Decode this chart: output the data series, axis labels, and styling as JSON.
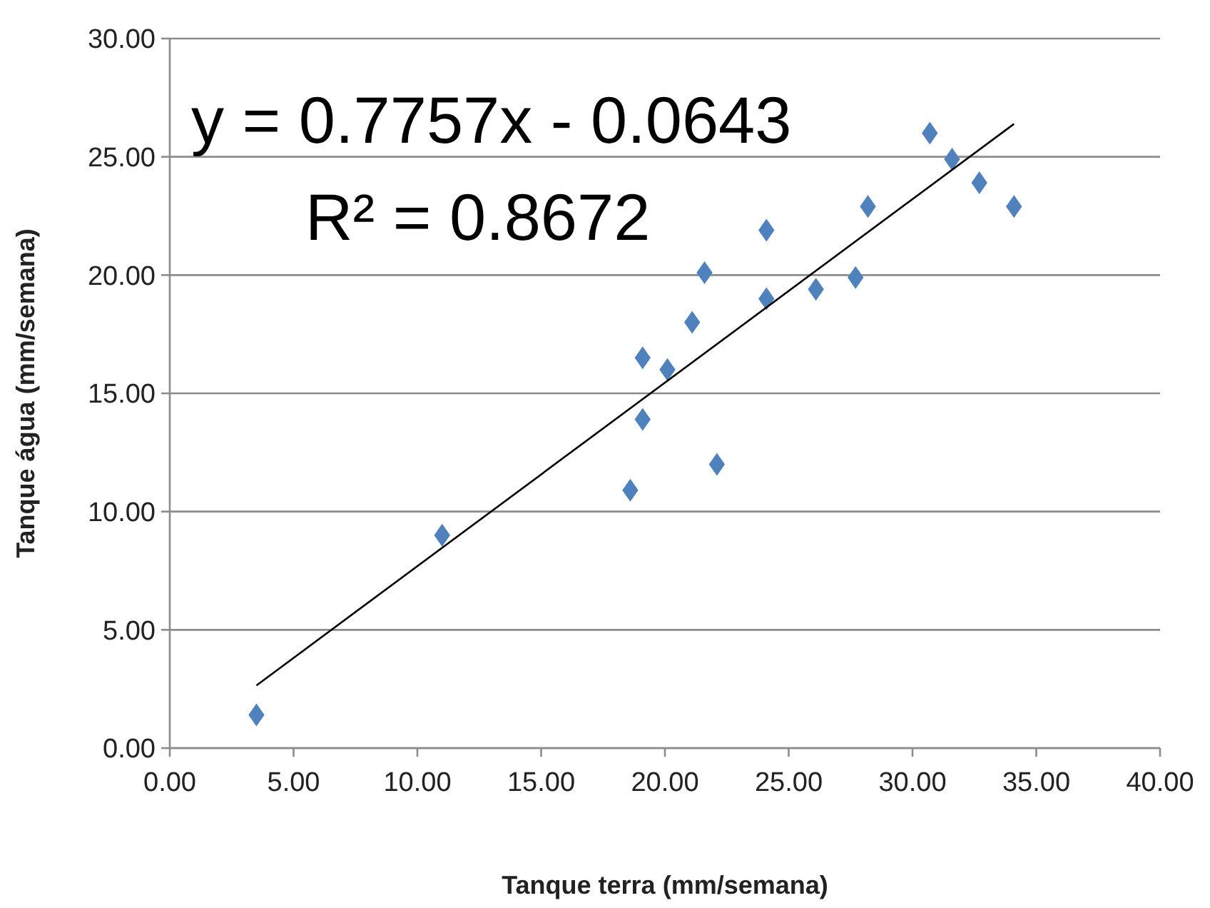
{
  "chart_data": {
    "type": "scatter",
    "xlabel": "Tanque terra (mm/semana)",
    "ylabel": "Tanque água (mm/semana)",
    "xlim": [
      0,
      40
    ],
    "xticks": [
      {
        "value": 0,
        "label": "0.00"
      },
      {
        "value": 5,
        "label": "5.00"
      },
      {
        "value": 10,
        "label": "10.00"
      },
      {
        "value": 15,
        "label": "15.00"
      },
      {
        "value": 20,
        "label": "20.00"
      },
      {
        "value": 25,
        "label": "25.00"
      },
      {
        "value": 30,
        "label": "30.00"
      },
      {
        "value": 35,
        "label": "35.00"
      },
      {
        "value": 40,
        "label": "40.00"
      }
    ],
    "ylim": [
      0,
      30
    ],
    "yticks": [
      {
        "value": 0,
        "label": "0.00"
      },
      {
        "value": 5,
        "label": "5.00"
      },
      {
        "value": 10,
        "label": "10.00"
      },
      {
        "value": 15,
        "label": "15.00"
      },
      {
        "value": 20,
        "label": "20.00"
      },
      {
        "value": 25,
        "label": "25.00"
      },
      {
        "value": 30,
        "label": "30.00"
      }
    ],
    "grid": "y",
    "annotations": [
      "y = 0.7757x - 0.0643",
      "R² = 0.8672"
    ],
    "series": [
      {
        "marker": "diamond",
        "color": "#4f81bd",
        "x": [
          3.5,
          11,
          18.6,
          19.1,
          19.1,
          20.1,
          21.1,
          21.6,
          22.1,
          24.1,
          24.1,
          26.1,
          27.7,
          28.2,
          30.7,
          31.6,
          32.7,
          34.1
        ],
        "values": [
          1.4,
          9,
          10.9,
          13.9,
          16.5,
          16,
          18,
          20.1,
          12,
          21.9,
          19,
          19.4,
          19.9,
          22.9,
          26,
          24.9,
          23.9,
          22.9
        ]
      },
      {
        "type": "line",
        "marker": "none",
        "color": "#000000",
        "x": [
          3.5,
          34.1
        ],
        "values": [
          2.65,
          26.39
        ]
      }
    ]
  }
}
